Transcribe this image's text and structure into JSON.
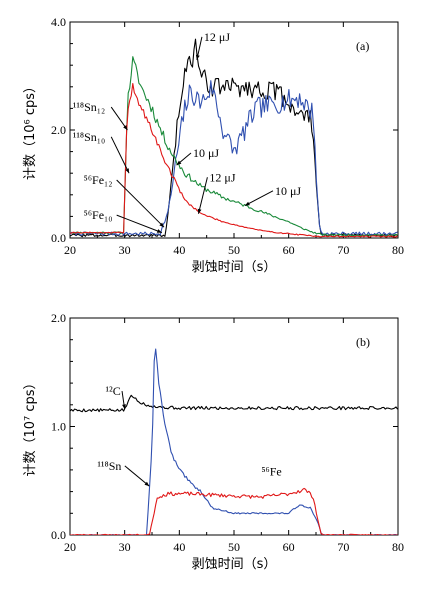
{
  "colors": {
    "black": "#000000",
    "blue": "#3050b0",
    "green": "#1a8a3a",
    "red": "#e01818"
  },
  "chart_data": [
    {
      "type": "line",
      "panel_label": "(a)",
      "xlabel": "剥蚀时间（s）",
      "ylabel": "计数（10⁶ cps）",
      "xlim": [
        20,
        80
      ],
      "ylim": [
        0,
        4
      ],
      "xticks": [
        "20",
        "30",
        "40",
        "50",
        "60",
        "70",
        "80"
      ],
      "yticks": [
        "0.0",
        "2.0",
        "4.0"
      ],
      "series": [
        {
          "name": "12 μJ",
          "color": "#000000",
          "seed": 3,
          "noise": 0.18,
          "x": [
            20,
            33,
            37.5,
            39.5,
            41,
            42.5,
            43,
            44,
            46,
            50,
            55,
            58,
            60,
            62,
            64,
            64.5,
            65.5,
            66,
            80
          ],
          "y": [
            0.05,
            0.05,
            0.05,
            2.0,
            3.1,
            3.3,
            3.6,
            3.0,
            2.8,
            2.8,
            2.75,
            2.7,
            2.5,
            2.3,
            2.2,
            2.0,
            0.3,
            0.05,
            0.05
          ]
        },
        {
          "name": "10 μJ",
          "color": "#3050b0",
          "seed": 7,
          "noise": 0.2,
          "x": [
            20,
            36.5,
            38,
            39.5,
            41,
            42,
            44,
            46,
            48,
            50,
            54,
            58,
            62,
            64.5,
            65.5,
            66,
            80
          ],
          "y": [
            0.08,
            0.08,
            0.5,
            1.5,
            2.4,
            2.7,
            2.5,
            2.8,
            2.0,
            1.6,
            2.4,
            2.5,
            2.6,
            2.3,
            0.3,
            0.08,
            0.08
          ]
        },
        {
          "name": "¹¹⁸Sn₁₂",
          "color": "#1a8a3a",
          "seed": 11,
          "noise": 0.1,
          "x": [
            20,
            29.8,
            30.5,
            31.5,
            33,
            35,
            37,
            39,
            41,
            44,
            48,
            52,
            56,
            60,
            62,
            64,
            66,
            80
          ],
          "y": [
            0.1,
            0.1,
            2.5,
            3.3,
            2.8,
            2.4,
            1.9,
            1.5,
            1.2,
            0.95,
            0.75,
            0.6,
            0.45,
            0.3,
            0.2,
            0.12,
            0.06,
            0.05
          ]
        },
        {
          "name": "¹¹⁸Sn₁₀",
          "color": "#e01818",
          "seed": 19,
          "noise": 0.07,
          "x": [
            20,
            29.8,
            30.5,
            31.5,
            33,
            35,
            37,
            39,
            41,
            44,
            48,
            52,
            56,
            60,
            63,
            66,
            80
          ],
          "y": [
            0.1,
            0.1,
            2.4,
            2.8,
            2.4,
            2.0,
            1.5,
            1.1,
            0.7,
            0.45,
            0.3,
            0.2,
            0.12,
            0.08,
            0.05,
            0.03,
            0.03
          ]
        }
      ],
      "annotations": [
        {
          "text": "12 μJ",
          "x": 44.5,
          "y": 3.65,
          "ax": 43.2,
          "ay": 3.3
        },
        {
          "text": "10 μJ",
          "x": 42.5,
          "y": 1.5,
          "ax": 39.5,
          "ay": 1.35
        },
        {
          "text": "12 μJ",
          "x": 45.5,
          "y": 1.05,
          "ax": 43.5,
          "ay": 0.45
        },
        {
          "text": "10 μJ",
          "x": 57.5,
          "y": 0.8,
          "ax": 52,
          "ay": 0.6
        },
        {
          "text": "¹¹⁸Sn₁₂",
          "x": 20.5,
          "y": 2.35,
          "ax": 30.5,
          "ay": 2.0
        },
        {
          "text": "¹¹⁸Sn₁₀",
          "x": 20.5,
          "y": 1.8,
          "ax": 30.8,
          "ay": 1.2
        },
        {
          "text": "⁵⁶Fe₁₂",
          "x": 22.5,
          "y": 1.0,
          "ax": 37.2,
          "ay": 0.2
        },
        {
          "text": "⁵⁶Fe₁₀",
          "x": 22.5,
          "y": 0.35,
          "ax": 36.8,
          "ay": 0.1
        }
      ]
    },
    {
      "type": "line",
      "panel_label": "(b)",
      "xlabel": "剥蚀时间（s）",
      "ylabel": "计数（10⁷ cps）",
      "xlim": [
        20,
        80
      ],
      "ylim": [
        0,
        2
      ],
      "xticks": [
        "20",
        "30",
        "40",
        "50",
        "60",
        "70",
        "80"
      ],
      "yticks": [
        "0.0",
        "1.0",
        "2.0"
      ],
      "series": [
        {
          "name": "¹²C",
          "color": "#000000",
          "seed": 5,
          "noise": 0.015,
          "x": [
            20,
            30,
            31,
            32,
            33,
            34,
            36,
            40,
            50,
            60,
            70,
            80
          ],
          "y": [
            1.15,
            1.15,
            1.28,
            1.26,
            1.22,
            1.2,
            1.18,
            1.17,
            1.17,
            1.17,
            1.17,
            1.17
          ]
        },
        {
          "name": "¹¹⁸Sn",
          "color": "#3050b0",
          "seed": 13,
          "noise": 0.03,
          "x": [
            20,
            34,
            35,
            35.5,
            36.5,
            37.5,
            38.5,
            40,
            42,
            44,
            46,
            50,
            55,
            60,
            62,
            64,
            65.5,
            66,
            80
          ],
          "y": [
            0,
            0,
            0.8,
            1.77,
            1.3,
            1.0,
            0.75,
            0.6,
            0.48,
            0.4,
            0.25,
            0.2,
            0.2,
            0.2,
            0.28,
            0.25,
            0.1,
            0,
            0
          ]
        },
        {
          "name": "⁵⁶Fe",
          "color": "#e01818",
          "seed": 23,
          "noise": 0.045,
          "x": [
            20,
            34.5,
            36,
            38,
            42,
            50,
            55,
            60,
            63,
            64.5,
            65.5,
            66,
            80
          ],
          "y": [
            0,
            0,
            0.35,
            0.38,
            0.38,
            0.36,
            0.35,
            0.38,
            0.42,
            0.35,
            0.1,
            0,
            0
          ]
        }
      ],
      "annotations": [
        {
          "text": "¹²C",
          "x": 26.5,
          "y": 1.29,
          "ax": 30,
          "ay": 1.16
        },
        {
          "text": "¹¹⁸Sn",
          "x": 25,
          "y": 0.6,
          "ax": 34.5,
          "ay": 0.45
        },
        {
          "text": "⁵⁶Fe",
          "x": 55,
          "y": 0.55,
          "ax": 0,
          "ay": 0
        }
      ]
    }
  ]
}
